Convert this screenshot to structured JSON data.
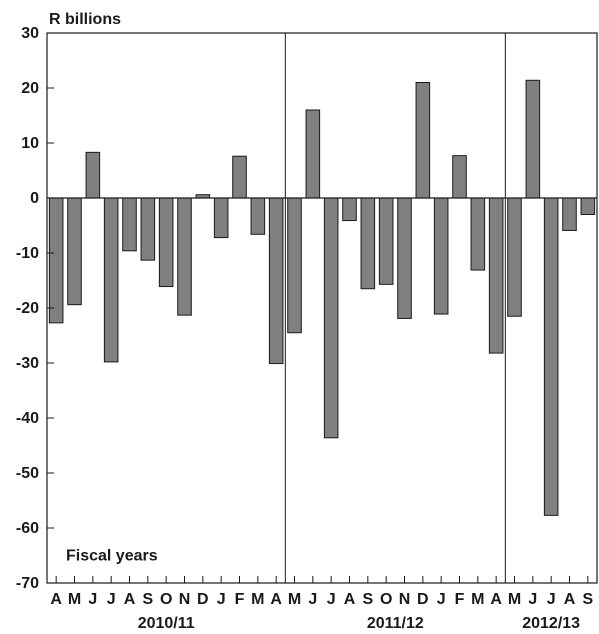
{
  "chart_data": {
    "type": "bar",
    "ylabel": "R billions",
    "annotation": "Fiscal years",
    "ylim": [
      -70,
      30
    ],
    "yticks": [
      30,
      20,
      10,
      0,
      -10,
      -20,
      -30,
      -40,
      -50,
      -60,
      -70
    ],
    "categories": [
      "A",
      "M",
      "J",
      "J",
      "A",
      "S",
      "O",
      "N",
      "D",
      "J",
      "F",
      "M",
      "A",
      "M",
      "J",
      "J",
      "A",
      "S",
      "O",
      "N",
      "D",
      "J",
      "F",
      "M",
      "A",
      "M",
      "J",
      "J",
      "A",
      "S"
    ],
    "values": [
      -22.7,
      -19.4,
      8.3,
      -29.8,
      -9.6,
      -11.3,
      -16.1,
      -21.3,
      0.6,
      -7.2,
      7.6,
      -6.6,
      -30.1,
      -24.5,
      16.0,
      -43.6,
      -4.1,
      -16.5,
      -15.7,
      -21.9,
      21.0,
      -21.1,
      7.7,
      -13.1,
      -28.2,
      -21.5,
      21.4,
      -57.7,
      -5.9,
      -3.0
    ],
    "fiscal_years": [
      {
        "label": "2010/11",
        "start": 0,
        "end": 12
      },
      {
        "label": "2011/12",
        "start": 13,
        "end": 24
      },
      {
        "label": "2012/13",
        "start": 25,
        "end": 29
      }
    ],
    "bar_color": "#808080",
    "grid": false,
    "legend": "none"
  }
}
